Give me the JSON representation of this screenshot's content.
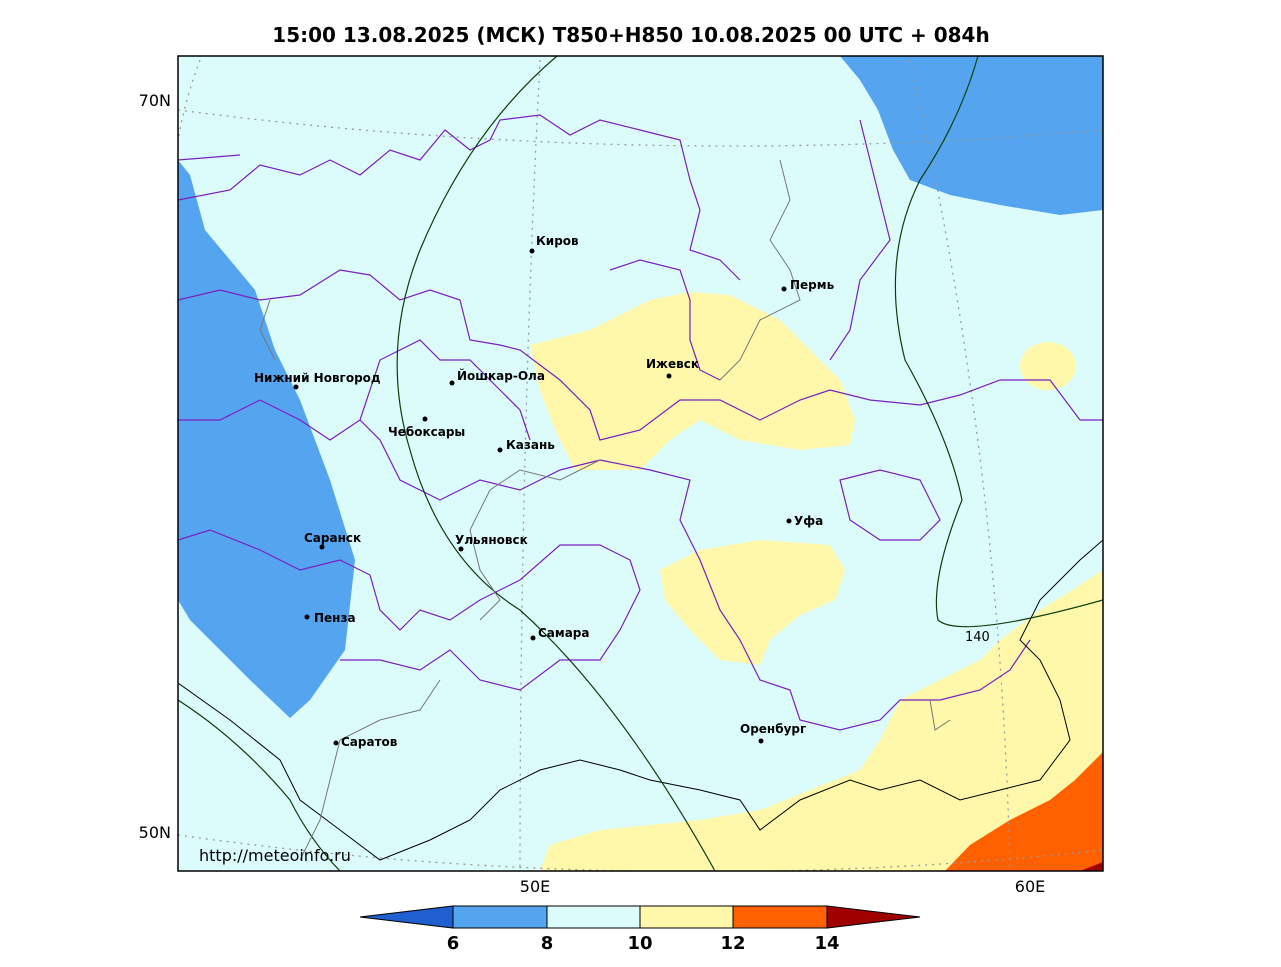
{
  "header": {
    "title": "15:00 13.08.2025 (МСК) T850+H850 10.08.2025 00 UTC + 084h"
  },
  "map": {
    "lat_labels": [
      "70N",
      "50N"
    ],
    "lon_labels": [
      "50E",
      "60E"
    ],
    "cities": [
      "Киров",
      "Пермь",
      "Нижний Новгород",
      "Йошкар-Ола",
      "Ижевск",
      "Чебоксары",
      "Казань",
      "Уфа",
      "Саранск",
      "Ульяновск",
      "Пенза",
      "Самара",
      "Оренбург",
      "Саратов"
    ],
    "contour_label": "140",
    "watermark": "http://meteoinfo.ru"
  },
  "colorbar": {
    "ticks": [
      6,
      8,
      10,
      12,
      14
    ]
  }
}
